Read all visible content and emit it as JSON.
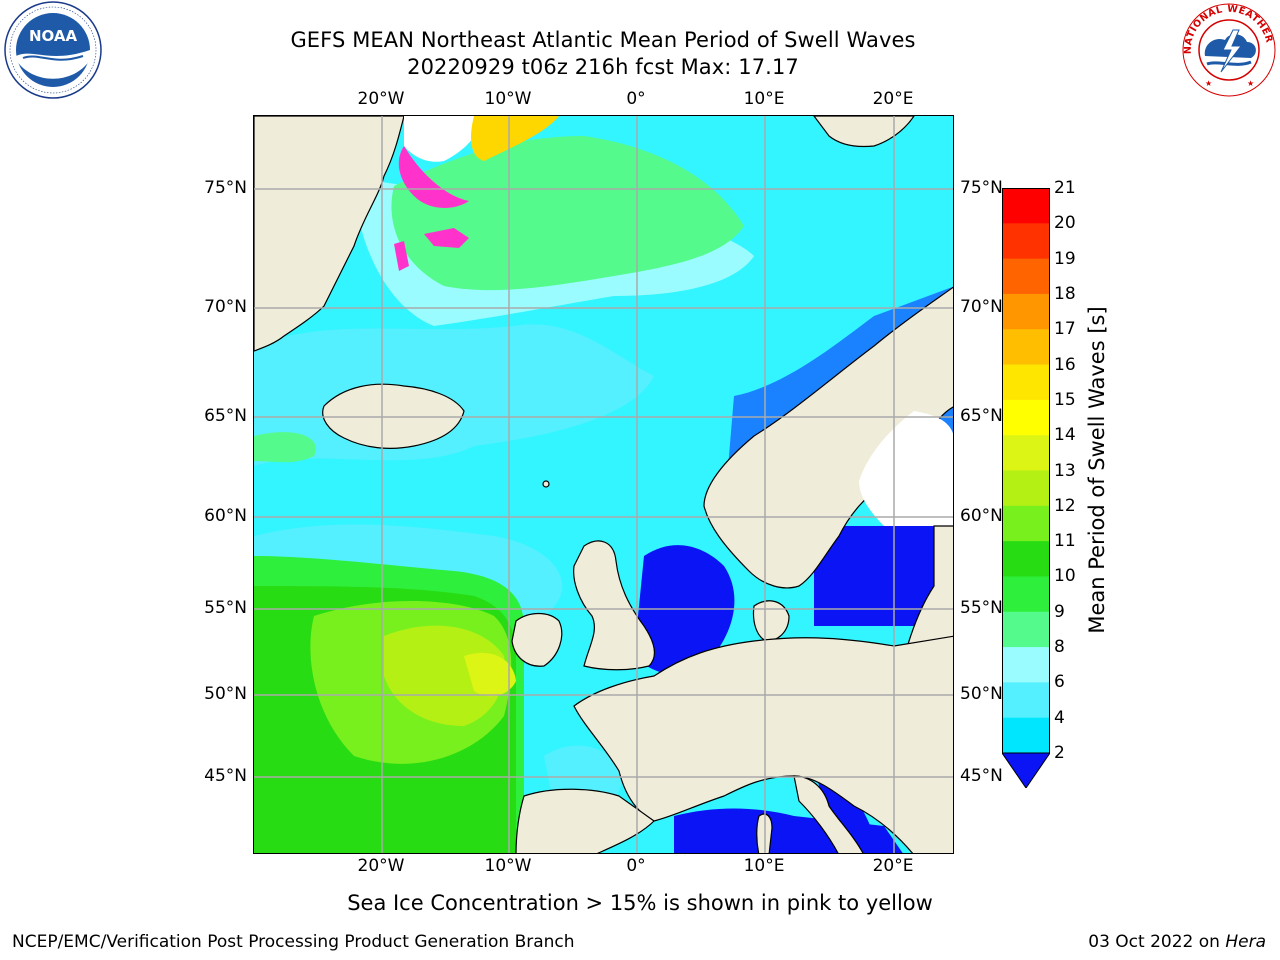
{
  "header": {
    "title_line1": "GEFS MEAN Northeast Atlantic Mean Period of Swell Waves",
    "title_line2": "20220929 t06z 216h fcst   Max: 17.17"
  },
  "logos": {
    "left": "noaa-logo",
    "left_text": "NOAA",
    "right": "nws-logo",
    "right_text": "NATIONAL WEATHER SERVICE"
  },
  "map": {
    "lon_labels": [
      "20°W",
      "10°W",
      "0°",
      "10°E",
      "20°E"
    ],
    "lat_labels_left": [
      "75°N",
      "70°N",
      "65°N",
      "60°N",
      "55°N",
      "50°N",
      "45°N"
    ],
    "lat_labels_right": [
      "75°N",
      "70°N",
      "65°N",
      "60°N",
      "55°N",
      "50°N",
      "45°N"
    ],
    "colors": {
      "land": "#efecd9",
      "ocean_base": "#33f5ff",
      "grid": "#aaaaaa",
      "coast": "#000000"
    }
  },
  "colorbar": {
    "label": "Mean Period of Swell Waves [s]",
    "tick_labels": [
      "2",
      "4",
      "6",
      "8",
      "9",
      "10",
      "11",
      "12",
      "13",
      "14",
      "15",
      "16",
      "17",
      "18",
      "19",
      "20",
      "21"
    ],
    "extend": "min",
    "colors": [
      "#0a14f5",
      "#1a82ff",
      "#00e6ff",
      "#55f0ff",
      "#9afcff",
      "#55fa8c",
      "#2ef03c",
      "#28dc14",
      "#78f01e",
      "#b4f014",
      "#dcf514",
      "#ffff00",
      "#ffe600",
      "#ffbe00",
      "#ff9600",
      "#ff6400",
      "#ff3200",
      "#ff0000"
    ]
  },
  "footer": {
    "note": "Sea Ice Concentration > 15% is shown in pink to yellow",
    "left": "NCEP/EMC/Verification Post Processing Product Generation Branch",
    "right_date": "03 Oct 2022 on",
    "right_host": "Hera"
  }
}
